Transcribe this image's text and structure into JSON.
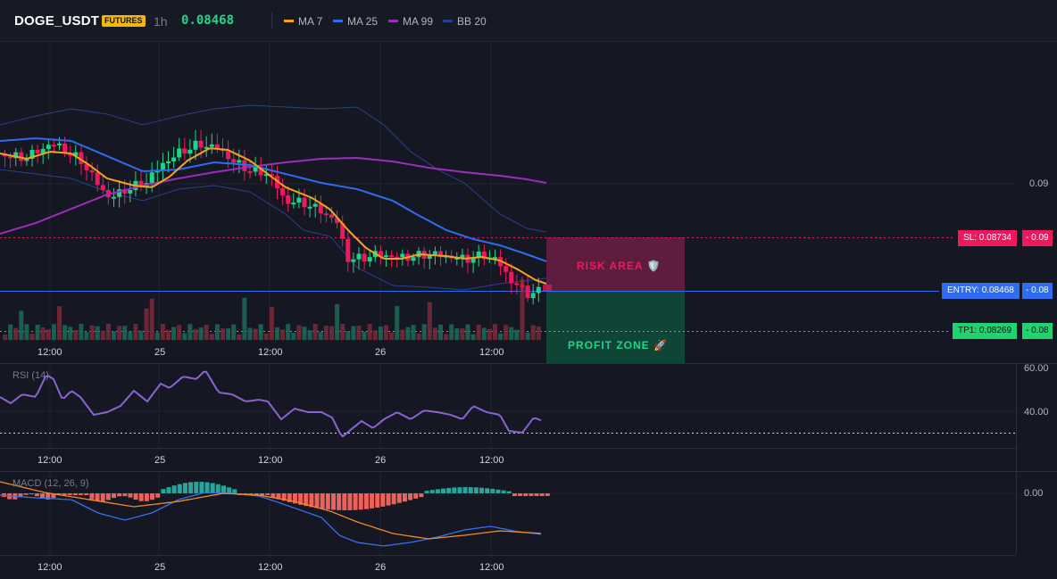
{
  "header": {
    "symbol": "DOGE_USDT",
    "badge": "FUTURES",
    "timeframe": "1h",
    "last_price": "0.08468",
    "legend": [
      {
        "label": "MA 7",
        "color": "#f7a21b"
      },
      {
        "label": "MA 25",
        "color": "#2f6cf0"
      },
      {
        "label": "MA 99",
        "color": "#9c2dbd"
      },
      {
        "label": "BB 20",
        "color": "#2a3f8a"
      }
    ]
  },
  "price_axis": {
    "label_009": "0.09"
  },
  "levels": {
    "sl": {
      "label": "SL: 0.08734",
      "suffix": "- 0.09",
      "color": "#f0185c"
    },
    "entry": {
      "label": "ENTRY: 0.08468",
      "suffix": "- 0.08",
      "color": "#2f6cf0"
    },
    "tp1": {
      "label": "TP1: 0.08269",
      "suffix": "- 0.08",
      "color": "#1ed46f"
    }
  },
  "zones": {
    "risk": {
      "label": "RISK AREA 🛡️"
    },
    "profit": {
      "label": "PROFIT ZONE 🚀"
    }
  },
  "time_labels": [
    "12:00",
    "25",
    "12:00",
    "26",
    "12:00"
  ],
  "rsi": {
    "title": "RSI (14)",
    "axis_top": "60.00",
    "axis_mid": "40.00"
  },
  "macd": {
    "title": "MACD (12, 26, 9)",
    "axis_zero": "0.00"
  },
  "colors": {
    "bull": "#1ed48a",
    "bear": "#f0185c",
    "ma7": "#f7a21b",
    "ma25": "#2f6cf0",
    "ma99": "#9c2dbd",
    "bb": "#2a3f8a",
    "rsi": "#8a63d2",
    "macd_line": "#3a6fe8",
    "signal_line": "#f08a24",
    "hist_pos": "#26a69a",
    "hist_neg": "#f0605a"
  }
}
